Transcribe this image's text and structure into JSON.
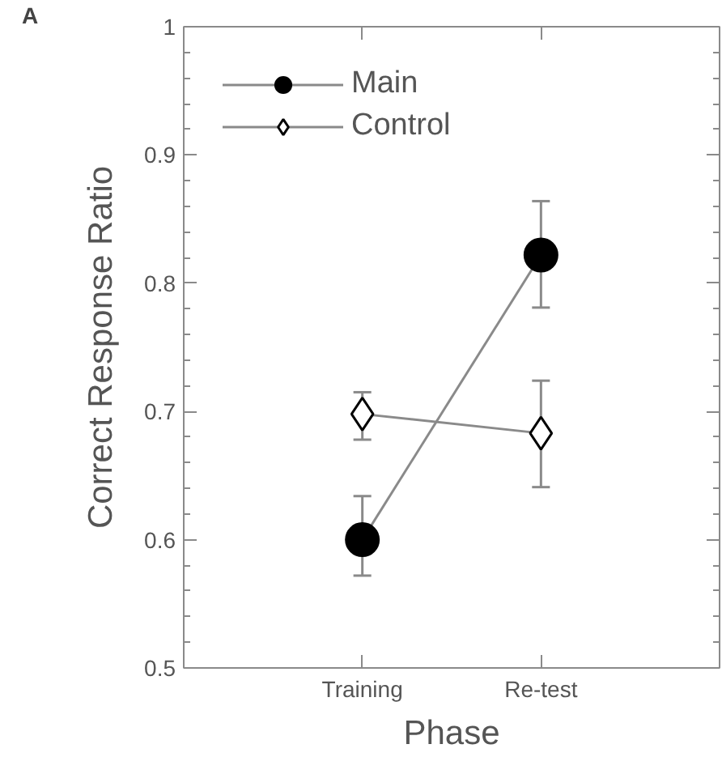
{
  "chart_data": {
    "type": "line",
    "xlabel": "Phase",
    "ylabel": "Correct Response Ratio",
    "annotations": [
      "A"
    ],
    "categories": [
      "Training",
      "Re-test"
    ],
    "series": [
      {
        "name": "Main",
        "color": "#000000",
        "marker": "circle",
        "values": [
          0.6,
          0.822
        ],
        "errors": [
          [
            0.572,
            0.634
          ],
          [
            0.781,
            0.864
          ]
        ]
      },
      {
        "name": "Control",
        "color": "#ffffff",
        "marker": "diamond",
        "values": [
          0.698,
          0.683
        ],
        "errors": [
          [
            0.678,
            0.715
          ],
          [
            0.641,
            0.724
          ]
        ]
      }
    ],
    "ylim": [
      0.5,
      1
    ],
    "yticks": [
      0.5,
      0.6,
      0.7,
      0.8,
      0.9,
      1
    ],
    "legend": "top left",
    "grid": false,
    "line_style": "solid"
  }
}
